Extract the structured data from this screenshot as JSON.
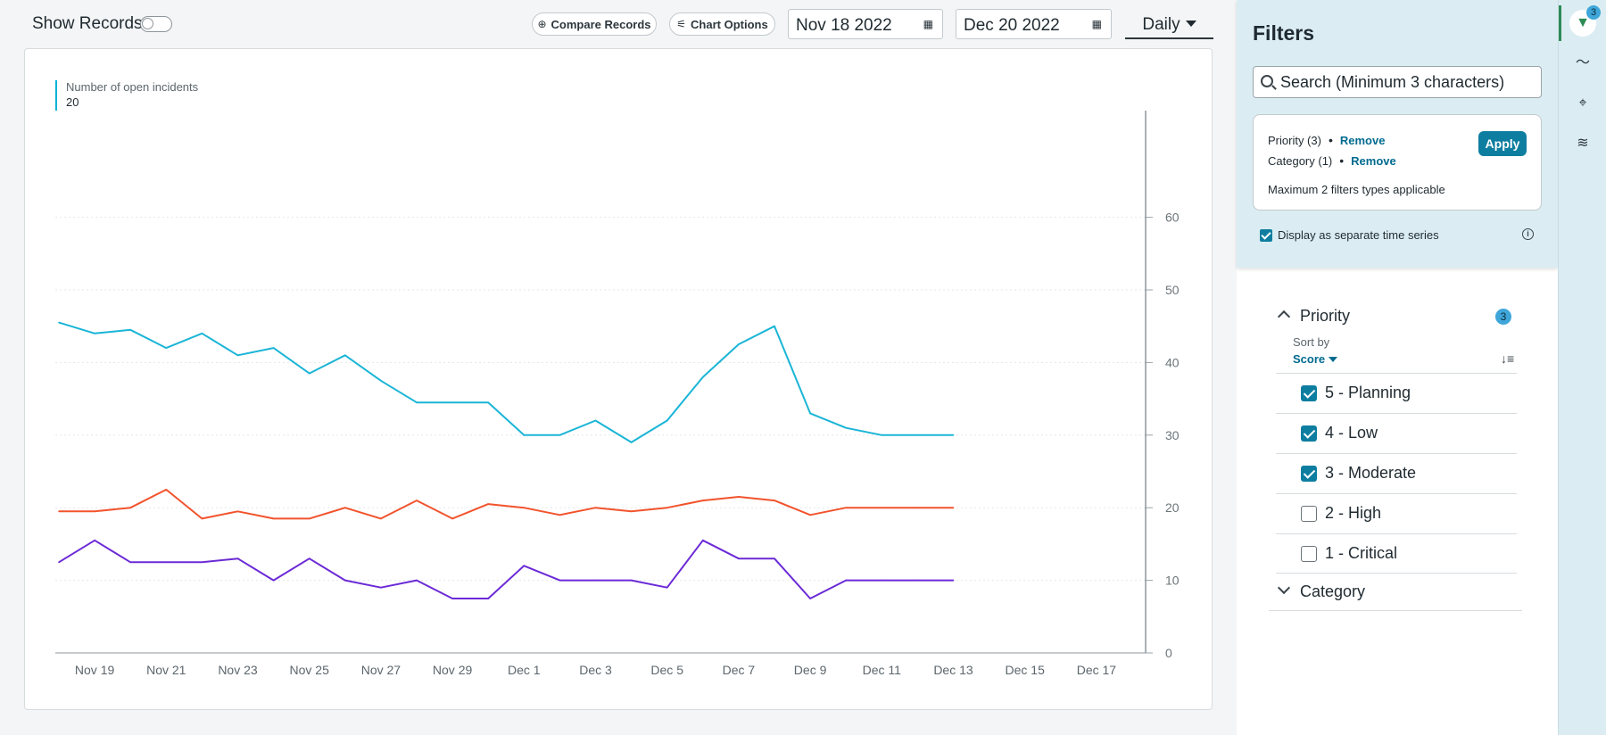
{
  "topbar": {
    "show_records": "Show Records",
    "compare_records": "Compare Records",
    "chart_options": "Chart Options",
    "start_date": "Nov 18 2022",
    "end_date": "Dec 20 2022",
    "interval": "Daily"
  },
  "chart_data": {
    "type": "line",
    "legend": {
      "label": "Number of open incidents",
      "value": "20"
    },
    "xlabel": "",
    "ylabel": "",
    "ylim": [
      0,
      60
    ],
    "yticks": [
      0,
      10,
      20,
      30,
      40,
      50,
      60
    ],
    "xticks": [
      "Nov 19",
      "Nov 21",
      "Nov 23",
      "Nov 25",
      "Nov 27",
      "Nov 29",
      "Dec 1",
      "Dec 3",
      "Dec 5",
      "Dec 7",
      "Dec 9",
      "Dec 11",
      "Dec 13",
      "Dec 15",
      "Dec 17"
    ],
    "x_dates": [
      "Nov 18",
      "Nov 19",
      "Nov 20",
      "Nov 21",
      "Nov 22",
      "Nov 23",
      "Nov 24",
      "Nov 25",
      "Nov 26",
      "Nov 27",
      "Nov 28",
      "Nov 29",
      "Nov 30",
      "Dec 1",
      "Dec 2",
      "Dec 3",
      "Dec 4",
      "Dec 5",
      "Dec 6",
      "Dec 7",
      "Dec 8",
      "Dec 9",
      "Dec 10",
      "Dec 11",
      "Dec 12",
      "Dec 13"
    ],
    "grid": true,
    "series": [
      {
        "color": "#1ab5d6",
        "values": [
          45.5,
          44.0,
          44.5,
          42.0,
          44.0,
          41.0,
          42.0,
          38.5,
          41.0,
          37.5,
          34.5,
          34.5,
          34.5,
          30.0,
          30.0,
          32.0,
          29.0,
          32.0,
          38.0,
          42.5,
          45.0,
          33.0,
          31.0,
          30.0,
          30.0,
          30.0
        ]
      },
      {
        "color": "#f2532d",
        "values": [
          19.5,
          19.5,
          20.0,
          22.5,
          18.5,
          19.5,
          18.5,
          18.5,
          20.0,
          18.5,
          21.0,
          18.5,
          20.5,
          20.0,
          19.0,
          20.0,
          19.5,
          20.0,
          21.0,
          21.5,
          21.0,
          19.0,
          20.0,
          20.0,
          20.0,
          20.0
        ]
      },
      {
        "color": "#6b2ad6",
        "values": [
          12.5,
          15.5,
          12.5,
          12.5,
          12.5,
          13.0,
          10.0,
          13.0,
          10.0,
          9.0,
          10.0,
          7.5,
          7.5,
          12.0,
          10.0,
          10.0,
          10.0,
          9.0,
          15.5,
          13.0,
          13.0,
          7.5,
          10.0,
          10.0,
          10.0,
          10.0
        ]
      }
    ]
  },
  "filters": {
    "title": "Filters",
    "search_placeholder": "Search (Minimum 3 characters)",
    "active": [
      {
        "label": "Priority (3)",
        "action": "Remove"
      },
      {
        "label": "Category (1)",
        "action": "Remove"
      }
    ],
    "apply_label": "Apply",
    "max_note": "Maximum 2 filters types applicable",
    "separate_label": "Display as separate time series",
    "priority": {
      "title": "Priority",
      "count": "3",
      "sort_by_label": "Sort by",
      "sort_value": "Score",
      "options": [
        {
          "label": "5 - Planning",
          "checked": true
        },
        {
          "label": "4 - Low",
          "checked": true
        },
        {
          "label": "3 - Moderate",
          "checked": true
        },
        {
          "label": "2 - High",
          "checked": false
        },
        {
          "label": "1 - Critical",
          "checked": false
        }
      ]
    },
    "category": {
      "title": "Category"
    }
  },
  "rail": {
    "badge": "3"
  }
}
